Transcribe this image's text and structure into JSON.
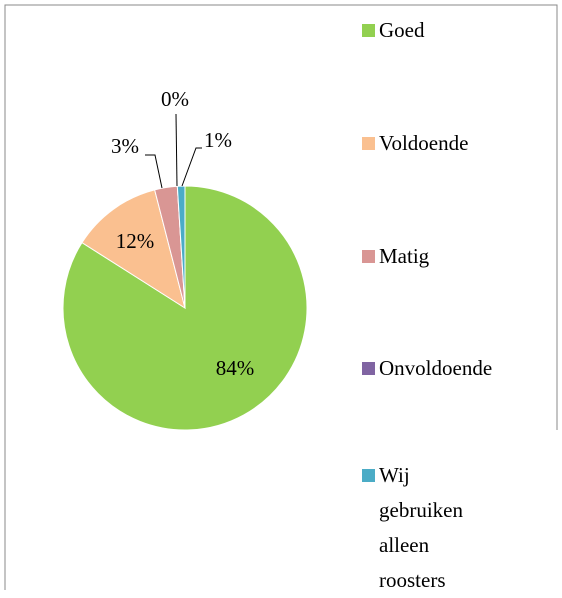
{
  "chart_data": {
    "type": "pie",
    "categories": [
      "Goed",
      "Voldoende",
      "Matig",
      "Onvoldoende",
      "Wij gebruiken alleen roosters"
    ],
    "values": [
      84,
      12,
      3,
      0,
      1
    ],
    "value_labels": [
      "84%",
      "12%",
      "3%",
      "0%",
      "1%"
    ],
    "colors": [
      "#92d050",
      "#fac090",
      "#d99694",
      "#8064a2",
      "#4bacc6"
    ],
    "legend": "right"
  }
}
